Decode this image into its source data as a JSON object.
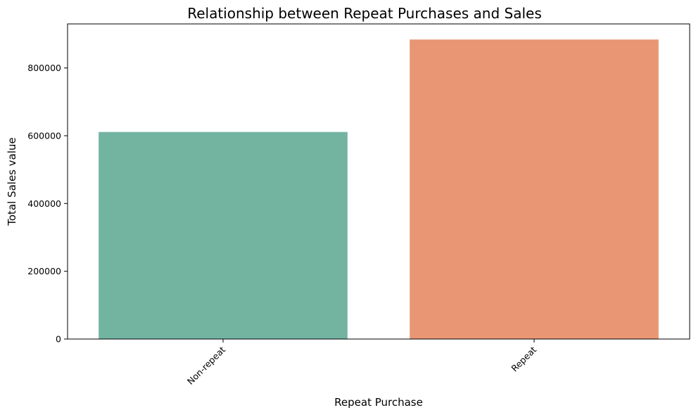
{
  "chart_data": {
    "type": "bar",
    "title": "Relationship between Repeat Purchases and Sales",
    "xlabel": "Repeat Purchase",
    "ylabel": "Total Sales value",
    "categories": [
      "Non-repeat",
      "Repeat"
    ],
    "values": [
      611000,
      884000
    ],
    "colors": [
      "#73b4a1",
      "#e99675"
    ],
    "ylim": [
      0,
      930000
    ],
    "yticks": [
      0,
      200000,
      400000,
      600000,
      800000
    ],
    "ytick_labels": [
      "0",
      "200000",
      "400000",
      "600000",
      "800000"
    ],
    "grid": false,
    "legend": "none"
  }
}
